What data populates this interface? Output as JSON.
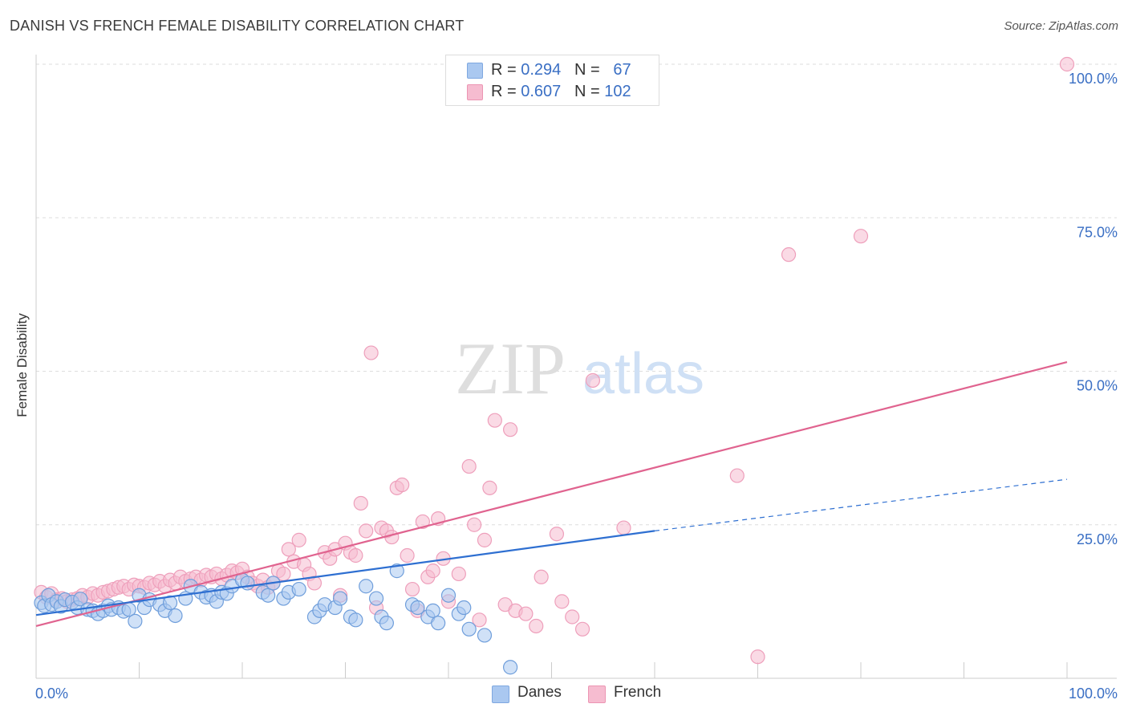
{
  "header": {
    "title": "DANISH VS FRENCH FEMALE DISABILITY CORRELATION CHART",
    "source": "Source: ZipAtlas.com"
  },
  "watermark": {
    "zip": "ZIP",
    "atlas": "atlas"
  },
  "legend": {
    "rows": [
      {
        "r_label": "R =",
        "r_value": "0.294",
        "n_label": "N =",
        "n_value": "67",
        "color": "#aac8f0"
      },
      {
        "r_label": "R =",
        "r_value": "0.607",
        "n_label": "N =",
        "n_value": "102",
        "color": "#f6bcd0"
      }
    ]
  },
  "bottom_legend": [
    {
      "label": "Danes",
      "color": "#aac8f0"
    },
    {
      "label": "French",
      "color": "#f6bcd0"
    }
  ],
  "chart_data": {
    "type": "scatter",
    "title": "DANISH VS FRENCH FEMALE DISABILITY CORRELATION CHART",
    "xlabel": "",
    "ylabel": "Female Disability",
    "xlim": [
      0,
      100
    ],
    "ylim": [
      0,
      100
    ],
    "x_tick_labels": [
      "0.0%",
      "100.0%"
    ],
    "y_tick_labels": [
      "25.0%",
      "50.0%",
      "75.0%",
      "100.0%"
    ],
    "y_ticks": [
      25,
      50,
      75,
      100
    ],
    "grid": true,
    "colors": {
      "danes": "#2e6fd1",
      "french": "#e0638f",
      "danes_fill": "#aac8f0",
      "french_fill": "#f6bcd0"
    },
    "series": [
      {
        "name": "Danes",
        "trend": {
          "x0": 0,
          "y0": 10.3,
          "x1": 60,
          "y1": 24.0,
          "dashed_to_x": 100,
          "dashed_to_y": 32.4
        },
        "points": [
          [
            0.5,
            12.3
          ],
          [
            0.8,
            11.8
          ],
          [
            1.2,
            13.5
          ],
          [
            1.5,
            12.0
          ],
          [
            2.0,
            12.5
          ],
          [
            2.4,
            11.7
          ],
          [
            2.8,
            12.8
          ],
          [
            3.5,
            12.4
          ],
          [
            4.0,
            11.5
          ],
          [
            4.3,
            12.9
          ],
          [
            5.0,
            11.2
          ],
          [
            5.5,
            11.0
          ],
          [
            6.0,
            10.5
          ],
          [
            6.5,
            11.0
          ],
          [
            7.0,
            11.8
          ],
          [
            7.3,
            11.2
          ],
          [
            8.0,
            11.5
          ],
          [
            8.5,
            10.9
          ],
          [
            9.0,
            11.2
          ],
          [
            9.6,
            9.3
          ],
          [
            10.0,
            13.5
          ],
          [
            10.5,
            11.5
          ],
          [
            11.0,
            12.8
          ],
          [
            12.0,
            12.0
          ],
          [
            12.5,
            11.0
          ],
          [
            13.0,
            12.3
          ],
          [
            13.5,
            10.2
          ],
          [
            14.5,
            13.0
          ],
          [
            15.0,
            15.0
          ],
          [
            16.0,
            14.0
          ],
          [
            16.5,
            13.2
          ],
          [
            17.0,
            13.5
          ],
          [
            17.5,
            12.5
          ],
          [
            18.0,
            14.0
          ],
          [
            18.5,
            13.8
          ],
          [
            19.0,
            15.0
          ],
          [
            20.0,
            16.0
          ],
          [
            20.5,
            15.5
          ],
          [
            22.0,
            14.0
          ],
          [
            22.5,
            13.5
          ],
          [
            23.0,
            15.5
          ],
          [
            24.0,
            13.0
          ],
          [
            24.5,
            14.0
          ],
          [
            25.5,
            14.5
          ],
          [
            27.0,
            10.0
          ],
          [
            27.5,
            11.0
          ],
          [
            28.0,
            12.0
          ],
          [
            29.0,
            11.5
          ],
          [
            29.5,
            13.0
          ],
          [
            30.5,
            10.0
          ],
          [
            31.0,
            9.5
          ],
          [
            32.0,
            15.0
          ],
          [
            33.0,
            13.0
          ],
          [
            33.5,
            10.0
          ],
          [
            34.0,
            9.0
          ],
          [
            35.0,
            17.5
          ],
          [
            36.5,
            12.0
          ],
          [
            37.0,
            11.5
          ],
          [
            38.0,
            10.0
          ],
          [
            38.5,
            11.0
          ],
          [
            39.0,
            9.0
          ],
          [
            40.0,
            13.5
          ],
          [
            41.0,
            10.5
          ],
          [
            41.5,
            11.5
          ],
          [
            42.0,
            8.0
          ],
          [
            43.5,
            7.0
          ],
          [
            46.0,
            1.8
          ]
        ]
      },
      {
        "name": "French",
        "trend": {
          "x0": 0,
          "y0": 8.5,
          "x1": 100,
          "y1": 51.5
        },
        "points": [
          [
            0.5,
            14.0
          ],
          [
            1.0,
            13.2
          ],
          [
            1.5,
            13.8
          ],
          [
            2.0,
            12.8
          ],
          [
            2.5,
            13.0
          ],
          [
            3.0,
            12.5
          ],
          [
            3.5,
            12.8
          ],
          [
            4.0,
            13.0
          ],
          [
            4.5,
            13.5
          ],
          [
            5.0,
            13.2
          ],
          [
            5.5,
            13.8
          ],
          [
            6.0,
            13.5
          ],
          [
            6.5,
            14.0
          ],
          [
            7.0,
            14.2
          ],
          [
            7.5,
            14.5
          ],
          [
            8.0,
            14.8
          ],
          [
            8.5,
            15.0
          ],
          [
            9.0,
            14.5
          ],
          [
            9.5,
            15.2
          ],
          [
            10.0,
            15.0
          ],
          [
            10.5,
            14.8
          ],
          [
            11.0,
            15.5
          ],
          [
            11.5,
            15.2
          ],
          [
            12.0,
            15.8
          ],
          [
            12.5,
            15.0
          ],
          [
            13.0,
            16.0
          ],
          [
            13.5,
            15.5
          ],
          [
            14.0,
            16.5
          ],
          [
            14.5,
            15.8
          ],
          [
            15.0,
            16.2
          ],
          [
            15.5,
            16.5
          ],
          [
            16.0,
            16.0
          ],
          [
            16.5,
            16.8
          ],
          [
            17.0,
            16.5
          ],
          [
            17.5,
            17.0
          ],
          [
            18.0,
            16.2
          ],
          [
            18.5,
            16.8
          ],
          [
            19.0,
            17.5
          ],
          [
            19.5,
            17.2
          ],
          [
            20.0,
            17.8
          ],
          [
            20.5,
            16.5
          ],
          [
            21.0,
            15.5
          ],
          [
            21.5,
            15.0
          ],
          [
            22.0,
            16.0
          ],
          [
            22.5,
            14.8
          ],
          [
            23.0,
            15.5
          ],
          [
            23.5,
            17.5
          ],
          [
            24.0,
            17.0
          ],
          [
            24.5,
            21.0
          ],
          [
            25.0,
            19.0
          ],
          [
            25.5,
            22.5
          ],
          [
            26.0,
            18.5
          ],
          [
            26.5,
            17.0
          ],
          [
            27.0,
            15.5
          ],
          [
            28.0,
            20.5
          ],
          [
            28.5,
            19.5
          ],
          [
            29.0,
            21.0
          ],
          [
            29.5,
            13.5
          ],
          [
            30.0,
            22.0
          ],
          [
            30.5,
            20.5
          ],
          [
            31.0,
            20.0
          ],
          [
            31.5,
            28.5
          ],
          [
            32.0,
            24.0
          ],
          [
            32.5,
            53.0
          ],
          [
            33.0,
            11.5
          ],
          [
            33.5,
            24.5
          ],
          [
            34.0,
            24.0
          ],
          [
            34.5,
            23.0
          ],
          [
            35.0,
            31.0
          ],
          [
            35.5,
            31.5
          ],
          [
            36.0,
            20.0
          ],
          [
            36.5,
            14.5
          ],
          [
            37.0,
            11.0
          ],
          [
            37.5,
            25.5
          ],
          [
            38.0,
            16.5
          ],
          [
            38.5,
            17.5
          ],
          [
            39.0,
            26.0
          ],
          [
            39.5,
            19.5
          ],
          [
            40.0,
            12.5
          ],
          [
            41.0,
            17.0
          ],
          [
            42.0,
            34.5
          ],
          [
            42.5,
            25.0
          ],
          [
            43.0,
            9.5
          ],
          [
            43.5,
            22.5
          ],
          [
            44.0,
            31.0
          ],
          [
            44.5,
            42.0
          ],
          [
            45.5,
            12.0
          ],
          [
            46.0,
            40.5
          ],
          [
            46.5,
            11.0
          ],
          [
            47.5,
            10.5
          ],
          [
            48.5,
            8.5
          ],
          [
            49.0,
            16.5
          ],
          [
            50.5,
            23.5
          ],
          [
            51.0,
            12.5
          ],
          [
            52.0,
            10.0
          ],
          [
            53.0,
            8.0
          ],
          [
            54.0,
            48.5
          ],
          [
            57.0,
            24.5
          ],
          [
            68.0,
            33.0
          ],
          [
            70.0,
            3.5
          ],
          [
            73.0,
            69.0
          ],
          [
            80.0,
            72.0
          ],
          [
            100.0,
            100.0
          ]
        ]
      }
    ]
  }
}
